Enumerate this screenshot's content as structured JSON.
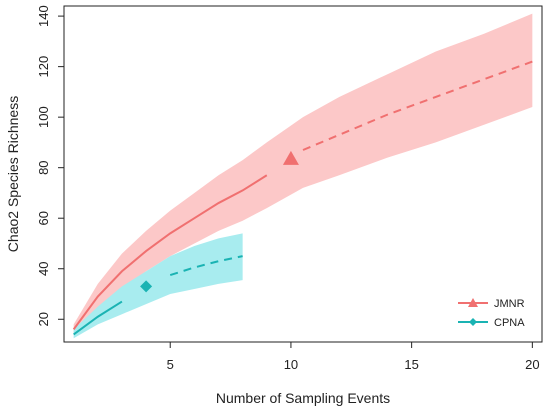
{
  "chart_data": {
    "type": "line",
    "title": "",
    "xlabel": "Number of Sampling Events",
    "ylabel": "Chao2 Species Richness",
    "xlim": [
      0.6,
      20.4
    ],
    "ylim": [
      11,
      144
    ],
    "xticks": [
      5,
      10,
      15,
      20
    ],
    "yticks": [
      20,
      40,
      60,
      80,
      100,
      120,
      140
    ],
    "grid": false,
    "legend_position": "bottom-right",
    "series": [
      {
        "name": "JMNR",
        "color": "#f07070",
        "band_color": "#fcc8c8",
        "marker": "triangle",
        "observed": {
          "x": 10,
          "y": 83.5
        },
        "interpolated": [
          {
            "x": 1,
            "y": 16,
            "lo": 14,
            "hi": 18
          },
          {
            "x": 2,
            "y": 29,
            "lo": 24,
            "hi": 34
          },
          {
            "x": 3,
            "y": 39,
            "lo": 32,
            "hi": 46
          },
          {
            "x": 4,
            "y": 47,
            "lo": 39,
            "hi": 55
          },
          {
            "x": 5,
            "y": 54,
            "lo": 45,
            "hi": 63
          },
          {
            "x": 6,
            "y": 60,
            "lo": 50,
            "hi": 70
          },
          {
            "x": 7,
            "y": 66,
            "lo": 55,
            "hi": 77
          },
          {
            "x": 8,
            "y": 71,
            "lo": 59,
            "hi": 83
          },
          {
            "x": 9,
            "y": 77,
            "lo": 64,
            "hi": 90
          }
        ],
        "extrapolated": [
          {
            "x": 10.5,
            "y": 87,
            "lo": 72,
            "hi": 100
          },
          {
            "x": 12,
            "y": 93,
            "lo": 77,
            "hi": 108
          },
          {
            "x": 14,
            "y": 101,
            "lo": 84,
            "hi": 117
          },
          {
            "x": 16,
            "y": 108,
            "lo": 90,
            "hi": 126
          },
          {
            "x": 18,
            "y": 115,
            "lo": 97,
            "hi": 133
          },
          {
            "x": 20,
            "y": 122,
            "lo": 104,
            "hi": 141
          }
        ]
      },
      {
        "name": "CPNA",
        "color": "#1ab3b3",
        "band_color": "#a8ecef",
        "marker": "diamond",
        "observed": {
          "x": 4,
          "y": 33
        },
        "interpolated": [
          {
            "x": 1,
            "y": 14,
            "lo": 12.5,
            "hi": 16
          },
          {
            "x": 2,
            "y": 21,
            "lo": 18,
            "hi": 25
          },
          {
            "x": 3,
            "y": 27,
            "lo": 22,
            "hi": 33
          }
        ],
        "extrapolated": [
          {
            "x": 5,
            "y": 37.5,
            "lo": 30,
            "hi": 45
          },
          {
            "x": 6,
            "y": 40.5,
            "lo": 32,
            "hi": 49
          },
          {
            "x": 7,
            "y": 43,
            "lo": 34,
            "hi": 52
          },
          {
            "x": 8,
            "y": 45,
            "lo": 35.5,
            "hi": 54
          }
        ]
      }
    ]
  }
}
